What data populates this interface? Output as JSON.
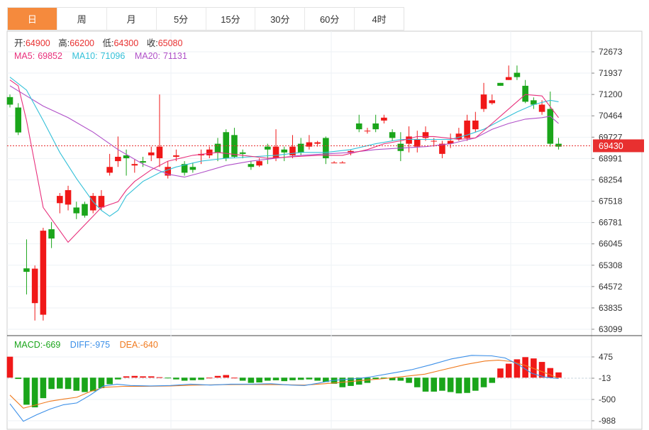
{
  "tabs": [
    {
      "label": "日",
      "active": true
    },
    {
      "label": "周",
      "active": false
    },
    {
      "label": "月",
      "active": false
    },
    {
      "label": "5分",
      "active": false
    },
    {
      "label": "15分",
      "active": false
    },
    {
      "label": "30分",
      "active": false
    },
    {
      "label": "60分",
      "active": false
    },
    {
      "label": "4时",
      "active": false
    }
  ],
  "ohlc_info": {
    "open_label": "开:",
    "open": "64900",
    "high_label": "高:",
    "high": "66200",
    "low_label": "低:",
    "low": "64300",
    "close_label": "收:",
    "close": "65080"
  },
  "ma_info": {
    "ma5_label": "MA5:",
    "ma5": "69852",
    "ma10_label": "MA10:",
    "ma10": "71096",
    "ma20_label": "MA20:",
    "ma20": "71131"
  },
  "macd_info": {
    "macd_label": "MACD:",
    "macd": "-669",
    "diff_label": "DIFF:",
    "diff": "-975",
    "dea_label": "DEA:",
    "dea": "-640"
  },
  "colors": {
    "up": "#f01818",
    "down": "#1aa51a",
    "ma5": "#e8307c",
    "ma10": "#33c0d8",
    "ma20": "#b050c8",
    "diff": "#3b8fe8",
    "dea": "#f07a1e",
    "price_line": "#e83030",
    "tab_active": "#f58a3d"
  },
  "chart_data": [
    {
      "type": "candlestick",
      "current_price": "69430",
      "price_ticks": [
        "72673",
        "71937",
        "71200",
        "70464",
        "69727",
        "68991",
        "68254",
        "67518",
        "66781",
        "66045",
        "65308",
        "64572",
        "63835",
        "63099"
      ],
      "ylim": [
        63099,
        72673
      ],
      "candles": [
        [
          71110,
          70850,
          71200,
          70750
        ],
        [
          70750,
          69890,
          70900,
          69800
        ],
        [
          65200,
          65080,
          66200,
          64300
        ],
        [
          64000,
          65190,
          65300,
          63400
        ],
        [
          63600,
          66500,
          66600,
          63400
        ],
        [
          66550,
          66230,
          66800,
          65900
        ],
        [
          67450,
          67700,
          67800,
          67100
        ],
        [
          67400,
          67900,
          68050,
          67200
        ],
        [
          67300,
          67100,
          67500,
          66900
        ],
        [
          67420,
          67020,
          67500,
          66950
        ],
        [
          67200,
          67700,
          67800,
          67100
        ],
        [
          67300,
          67700,
          67900,
          67200
        ],
        [
          68500,
          68700,
          69150,
          68400
        ],
        [
          68900,
          69050,
          69750,
          68700
        ],
        [
          69100,
          69000,
          69300,
          68400
        ],
        [
          68750,
          68800,
          68950,
          68500
        ],
        [
          68900,
          68850,
          69050,
          68700
        ],
        [
          69100,
          69200,
          69400,
          68900
        ],
        [
          69000,
          69400,
          71200,
          68700
        ],
        [
          68400,
          68700,
          68900,
          68300
        ],
        [
          69050,
          69100,
          69300,
          68900
        ],
        [
          68800,
          68500,
          68900,
          68400
        ],
        [
          68700,
          68600,
          68850,
          68500
        ],
        [
          69100,
          69150,
          69300,
          68800
        ],
        [
          69100,
          69300,
          69400,
          69000
        ],
        [
          69500,
          69200,
          69700,
          68900
        ],
        [
          69900,
          69000,
          70000,
          68900
        ],
        [
          69800,
          69050,
          70050,
          69000
        ],
        [
          69200,
          69150,
          69300,
          69000
        ],
        [
          68800,
          68700,
          68900,
          68600
        ],
        [
          68750,
          68900,
          69000,
          68700
        ],
        [
          69400,
          69300,
          69500,
          68800
        ],
        [
          69000,
          69400,
          70000,
          68900
        ],
        [
          69300,
          69200,
          69400,
          68900
        ],
        [
          69100,
          69400,
          69800,
          69000
        ],
        [
          69500,
          69200,
          69700,
          69100
        ],
        [
          69400,
          69550,
          69800,
          69300
        ],
        [
          69500,
          69550,
          69600,
          69400
        ],
        [
          69700,
          69000,
          69750,
          68800
        ],
        [
          68850,
          68850,
          68900,
          68850
        ],
        [
          68850,
          68850,
          68900,
          68850
        ],
        [
          69200,
          69250,
          69300,
          69100
        ],
        [
          70200,
          70000,
          70500,
          69900
        ],
        [
          69950,
          69950,
          70050,
          69850
        ],
        [
          70200,
          70000,
          70500,
          69900
        ],
        [
          70300,
          70400,
          70500,
          70200
        ],
        [
          69900,
          69700,
          70000,
          69600
        ],
        [
          69500,
          69250,
          69900,
          68900
        ],
        [
          69500,
          69750,
          70100,
          69200
        ],
        [
          69400,
          69650,
          69950,
          69200
        ],
        [
          69700,
          69900,
          70100,
          69600
        ],
        [
          69600,
          69600,
          69700,
          69400
        ],
        [
          69150,
          69500,
          69600,
          69000
        ],
        [
          69500,
          69600,
          69850,
          69350
        ],
        [
          69650,
          69850,
          70050,
          69600
        ],
        [
          69700,
          70300,
          70500,
          69600
        ],
        [
          70000,
          70300,
          70600,
          69900
        ],
        [
          70700,
          71200,
          71600,
          70600
        ],
        [
          70900,
          71000,
          71200,
          70850
        ],
        [
          71600,
          71500,
          71600,
          71500
        ],
        [
          71700,
          71800,
          72200,
          71700
        ],
        [
          71950,
          71800,
          72200,
          71700
        ],
        [
          71500,
          70950,
          71700,
          70900
        ],
        [
          71000,
          70850,
          71100,
          70700
        ],
        [
          70600,
          70850,
          71000,
          70500
        ],
        [
          70700,
          69500,
          71300,
          69400
        ],
        [
          69500,
          69400,
          69700,
          69300
        ]
      ],
      "ma5": [
        [
          0,
          71700
        ],
        [
          1,
          71500
        ],
        [
          2,
          70300
        ],
        [
          3,
          68800
        ],
        [
          4,
          67300
        ],
        [
          6,
          66500
        ],
        [
          7,
          66100
        ],
        [
          9,
          66700
        ],
        [
          10,
          67000
        ],
        [
          11,
          67300
        ],
        [
          13,
          67500
        ],
        [
          14,
          67900
        ],
        [
          15,
          68200
        ],
        [
          17,
          68600
        ],
        [
          19,
          68900
        ],
        [
          22,
          69100
        ],
        [
          25,
          69200
        ],
        [
          28,
          69100
        ],
        [
          31,
          69000
        ],
        [
          34,
          69050
        ],
        [
          37,
          69100
        ],
        [
          40,
          69100
        ],
        [
          43,
          69300
        ],
        [
          45,
          69500
        ],
        [
          47,
          69600
        ],
        [
          49,
          69750
        ],
        [
          51,
          69750
        ],
        [
          54,
          69650
        ],
        [
          56,
          69700
        ],
        [
          58,
          70200
        ],
        [
          60,
          70700
        ],
        [
          62,
          71200
        ],
        [
          64,
          71150
        ],
        [
          66,
          70400
        ]
      ],
      "ma10": [
        [
          0,
          71800
        ],
        [
          2,
          71350
        ],
        [
          4,
          70300
        ],
        [
          6,
          69200
        ],
        [
          8,
          68300
        ],
        [
          10,
          67500
        ],
        [
          11,
          67200
        ],
        [
          12,
          67000
        ],
        [
          13,
          67200
        ],
        [
          14,
          67700
        ],
        [
          16,
          68200
        ],
        [
          18,
          68500
        ],
        [
          20,
          68700
        ],
        [
          23,
          68900
        ],
        [
          26,
          69000
        ],
        [
          29,
          69050
        ],
        [
          32,
          69100
        ],
        [
          35,
          69200
        ],
        [
          38,
          69200
        ],
        [
          41,
          69300
        ],
        [
          44,
          69500
        ],
        [
          47,
          69650
        ],
        [
          50,
          69650
        ],
        [
          53,
          69650
        ],
        [
          55,
          69800
        ],
        [
          57,
          70000
        ],
        [
          59,
          70300
        ],
        [
          61,
          70600
        ],
        [
          63,
          70850
        ],
        [
          65,
          71000
        ],
        [
          66,
          70950
        ]
      ],
      "ma20": [
        [
          0,
          71500
        ],
        [
          2,
          71150
        ],
        [
          4,
          70800
        ],
        [
          7,
          70400
        ],
        [
          10,
          69900
        ],
        [
          13,
          69300
        ],
        [
          16,
          68800
        ],
        [
          19,
          68450
        ],
        [
          21,
          68350
        ],
        [
          23,
          68500
        ],
        [
          26,
          68750
        ],
        [
          29,
          68900
        ],
        [
          32,
          69000
        ],
        [
          35,
          69100
        ],
        [
          38,
          69150
        ],
        [
          41,
          69200
        ],
        [
          44,
          69300
        ],
        [
          47,
          69350
        ],
        [
          50,
          69400
        ],
        [
          53,
          69500
        ],
        [
          56,
          69700
        ],
        [
          58,
          70000
        ],
        [
          60,
          70200
        ],
        [
          62,
          70350
        ],
        [
          64,
          70400
        ],
        [
          65,
          70450
        ],
        [
          66,
          70200
        ]
      ]
    },
    {
      "type": "macd_histogram",
      "ticks": [
        "475",
        "-13",
        "-500",
        "-988"
      ],
      "ylim": [
        -988,
        475
      ],
      "hist": [
        480,
        -30,
        -620,
        -680,
        -470,
        -260,
        -250,
        -260,
        -300,
        -330,
        -310,
        -240,
        -150,
        -40,
        30,
        40,
        30,
        30,
        10,
        -10,
        -40,
        -70,
        -60,
        -50,
        0,
        40,
        60,
        0,
        -70,
        -120,
        -110,
        -70,
        -60,
        -80,
        -60,
        -50,
        -40,
        -70,
        -100,
        -140,
        -220,
        -190,
        -160,
        -120,
        -30,
        -20,
        -60,
        -70,
        -120,
        -220,
        -320,
        -320,
        -300,
        -330,
        -360,
        -350,
        -300,
        -220,
        -120,
        210,
        320,
        420,
        470,
        440,
        360,
        220,
        120
      ],
      "diff": [
        [
          0,
          -600
        ],
        [
          2,
          -1000
        ],
        [
          4,
          -850
        ],
        [
          6,
          -720
        ],
        [
          8,
          -620
        ],
        [
          10,
          -580
        ],
        [
          12,
          -400
        ],
        [
          14,
          -190
        ],
        [
          16,
          -150
        ],
        [
          18,
          -180
        ],
        [
          21,
          -190
        ],
        [
          24,
          -180
        ],
        [
          27,
          -150
        ],
        [
          30,
          -170
        ],
        [
          33,
          -150
        ],
        [
          36,
          -150
        ],
        [
          39,
          -140
        ],
        [
          42,
          -170
        ],
        [
          44,
          -180
        ],
        [
          46,
          -130
        ],
        [
          48,
          -70
        ],
        [
          50,
          -40
        ],
        [
          52,
          -20
        ],
        [
          54,
          20
        ],
        [
          57,
          100
        ],
        [
          60,
          180
        ],
        [
          63,
          300
        ],
        [
          66,
          430
        ],
        [
          69,
          510
        ],
        [
          72,
          500
        ],
        [
          74,
          450
        ],
        [
          76,
          300
        ],
        [
          78,
          100
        ],
        [
          80,
          10
        ],
        [
          82,
          -20
        ]
      ],
      "dea": [
        [
          0,
          -400
        ],
        [
          2,
          -700
        ],
        [
          4,
          -620
        ],
        [
          6,
          -540
        ],
        [
          8,
          -490
        ],
        [
          10,
          -450
        ],
        [
          12,
          -320
        ],
        [
          14,
          -220
        ],
        [
          17,
          -200
        ],
        [
          20,
          -200
        ],
        [
          24,
          -190
        ],
        [
          28,
          -170
        ],
        [
          32,
          -160
        ],
        [
          36,
          -155
        ],
        [
          40,
          -160
        ],
        [
          44,
          -170
        ],
        [
          47,
          -140
        ],
        [
          50,
          -100
        ],
        [
          53,
          -60
        ],
        [
          56,
          -20
        ],
        [
          59,
          30
        ],
        [
          62,
          80
        ],
        [
          65,
          190
        ],
        [
          68,
          300
        ],
        [
          71,
          380
        ],
        [
          73,
          400
        ],
        [
          75,
          370
        ],
        [
          77,
          280
        ],
        [
          79,
          170
        ],
        [
          81,
          50
        ],
        [
          82,
          -20
        ]
      ]
    }
  ]
}
